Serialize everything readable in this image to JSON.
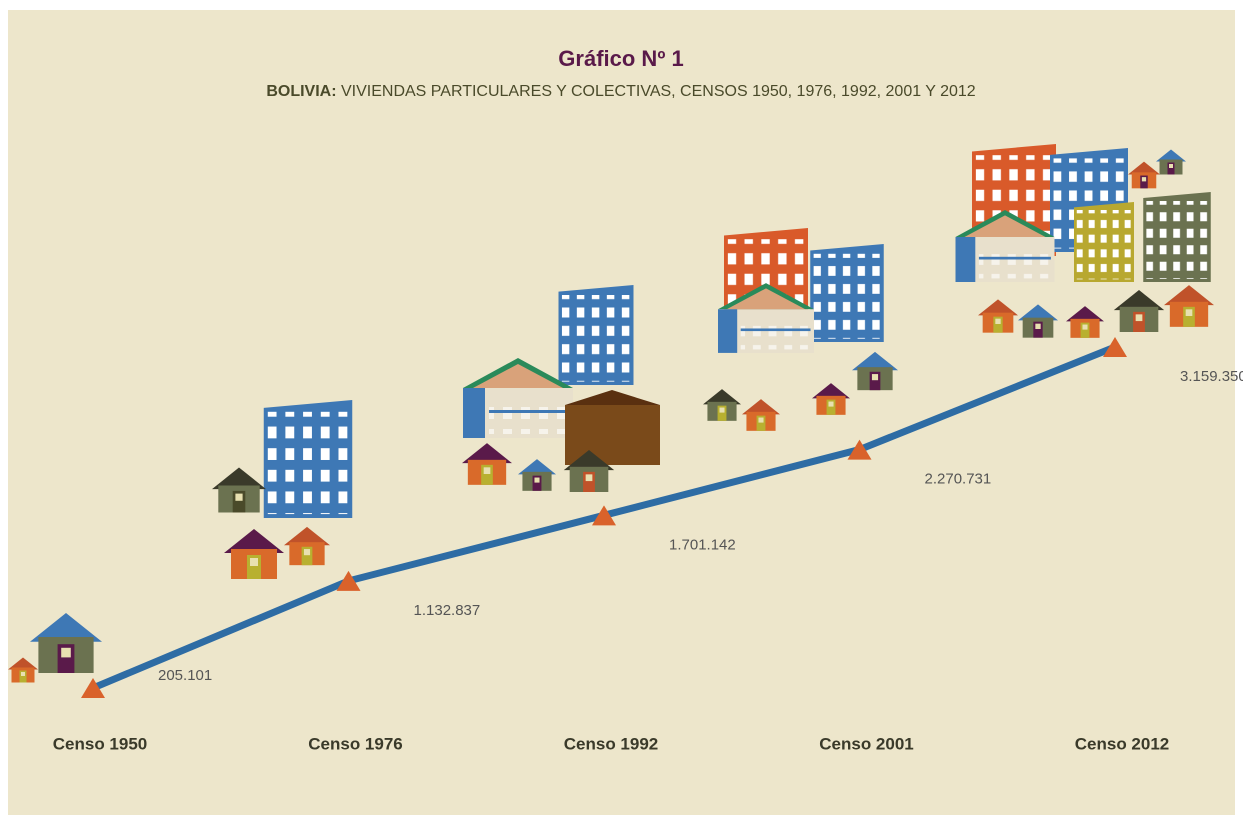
{
  "chart_data": {
    "type": "line",
    "title": "Gráfico Nº 1",
    "subtitle_lead": "BOLIVIA:",
    "subtitle": " VIVIENDAS PARTICULARES Y COLECTIVAS, CENSOS 1950, 1976, 1992, 2001 Y 2012",
    "categories": [
      "Censo 1950",
      "Censo 1976",
      "Censo 1992",
      "Censo 2001",
      "Censo 2012"
    ],
    "values": [
      205101,
      1132837,
      1701142,
      2270731,
      3159350
    ],
    "value_labels": [
      "205.101",
      "1.132.837",
      "1.701.142",
      "2.270.731",
      "3.159.350"
    ],
    "color": "#2e6ca4",
    "marker_color": "#d9622b"
  }
}
